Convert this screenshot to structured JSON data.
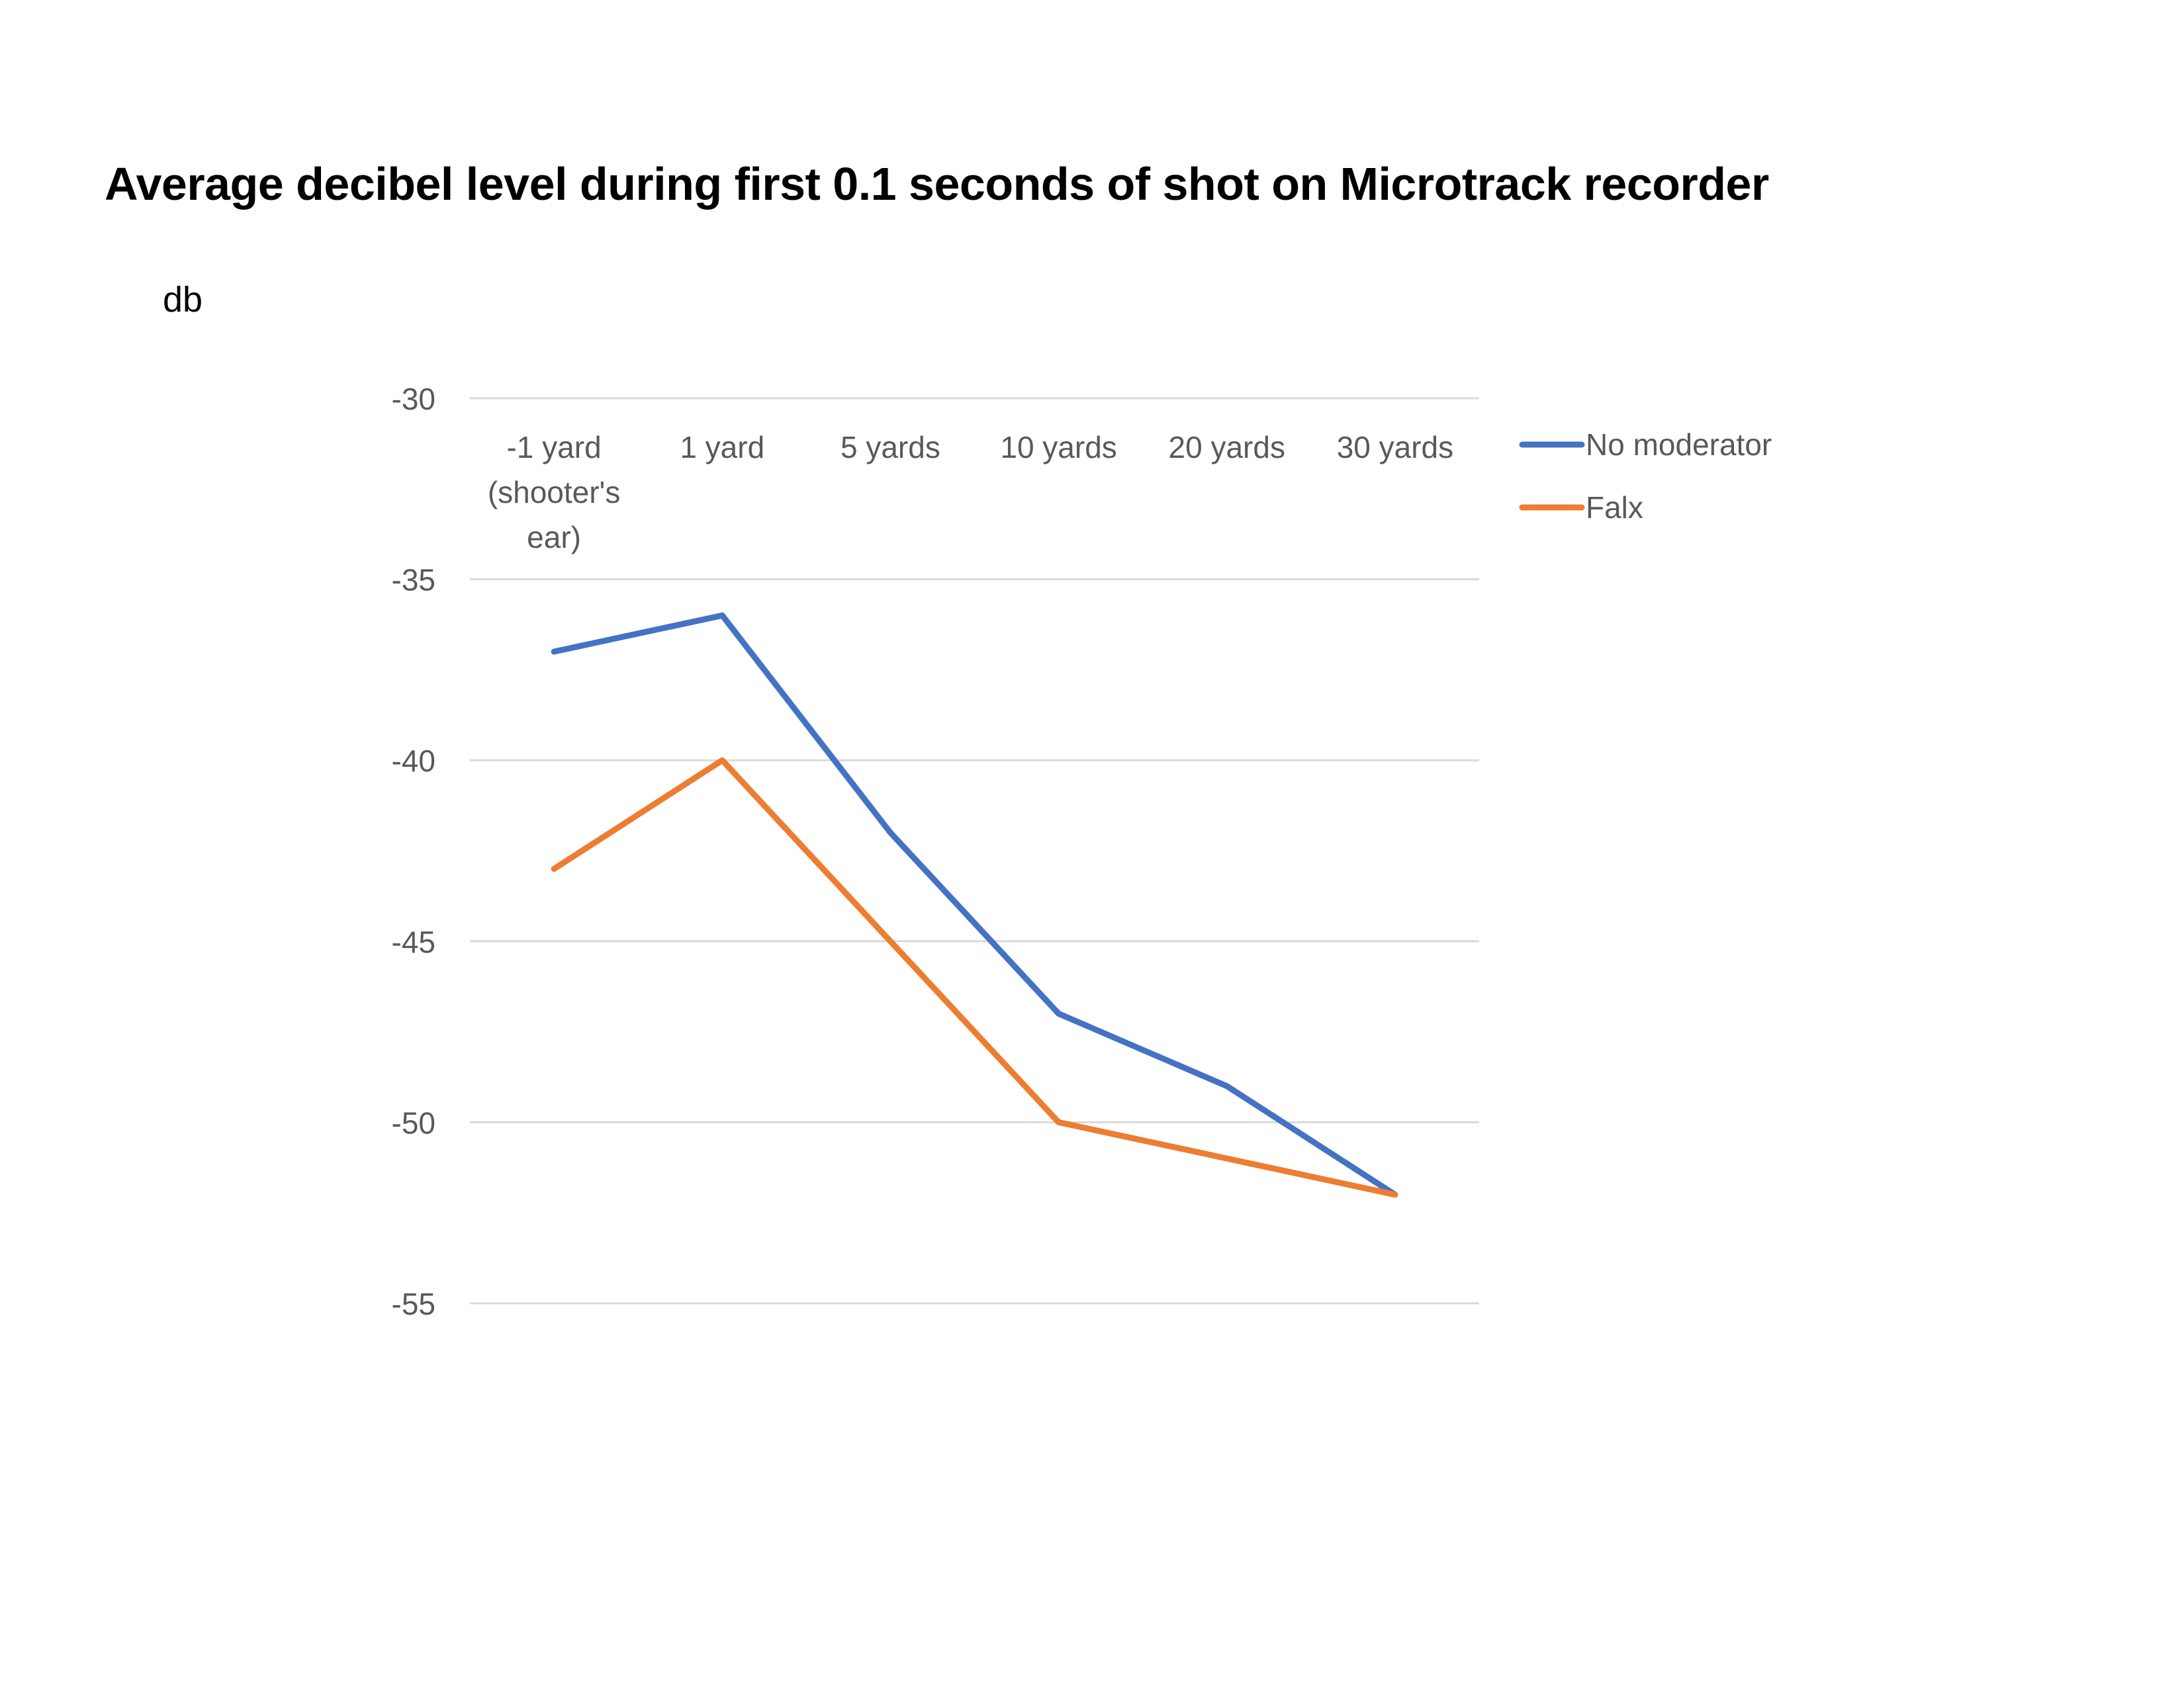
{
  "chart_data": {
    "type": "line",
    "title": "Average decibel level during first 0.1 seconds of shot on Microtrack recorder",
    "ylabel": "db",
    "xlabel": "",
    "categories": [
      [
        "-1 yard",
        "(shooter's",
        "ear)"
      ],
      [
        "1 yard"
      ],
      [
        "5 yards"
      ],
      [
        "10 yards"
      ],
      [
        "20 yards"
      ],
      [
        "30 yards"
      ]
    ],
    "ylim": [
      -55,
      -30
    ],
    "y_ticks": [
      -30,
      -35,
      -40,
      -45,
      -50,
      -55
    ],
    "y_tick_labels": [
      "-30",
      "-35",
      "-40",
      "-45",
      "-50",
      "-55"
    ],
    "x_axis_position": "top",
    "grid": true,
    "legend_position": "right",
    "series": [
      {
        "name": "No moderator",
        "color": "#4472C4",
        "values": [
          -37,
          -36,
          -42,
          -47,
          -49,
          -52
        ]
      },
      {
        "name": "Falx",
        "color": "#ED7D31",
        "values": [
          -43,
          -40,
          -45,
          -50,
          -51,
          -52
        ]
      }
    ]
  }
}
